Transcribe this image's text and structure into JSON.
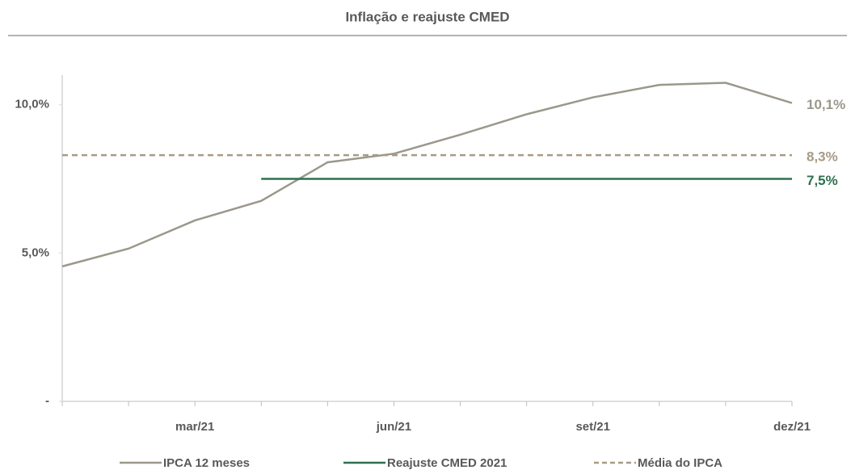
{
  "chart_data": {
    "type": "line",
    "title": "Inflação e reajuste CMED",
    "categories": [
      null,
      null,
      "mar/21",
      null,
      null,
      "jun/21",
      null,
      null,
      "set/21",
      null,
      null,
      "dez/21"
    ],
    "series": [
      {
        "name": "IPCA 12 meses",
        "color": "#9b988b",
        "dash": false,
        "values": [
          4.55,
          5.15,
          6.1,
          6.76,
          8.06,
          8.35,
          8.99,
          9.68,
          10.25,
          10.67,
          10.74,
          10.06
        ],
        "value_labels": [
          null,
          null,
          null,
          null,
          null,
          null,
          null,
          null,
          null,
          null,
          null,
          "10,1%"
        ]
      },
      {
        "name": "Reajuste CMED 2021",
        "color": "#2e7050",
        "dash": false,
        "values": [
          null,
          null,
          null,
          7.5,
          7.5,
          7.5,
          7.5,
          7.5,
          7.5,
          7.5,
          7.5,
          7.5
        ],
        "value_labels": [
          null,
          null,
          null,
          null,
          null,
          null,
          null,
          null,
          null,
          null,
          null,
          "7,5%"
        ]
      },
      {
        "name": "Média do IPCA",
        "color": "#a89a84",
        "dash": true,
        "values": [
          8.3,
          8.3,
          8.3,
          8.3,
          8.3,
          8.3,
          8.3,
          8.3,
          8.3,
          8.3,
          8.3,
          8.3
        ],
        "value_labels": [
          null,
          null,
          null,
          null,
          null,
          null,
          null,
          null,
          null,
          null,
          null,
          "8,3%"
        ]
      }
    ],
    "ylim": [
      0,
      11
    ],
    "yticks": [
      {
        "value": 0,
        "label": "-"
      },
      {
        "value": 5,
        "label": "5,0%"
      },
      {
        "value": 10,
        "label": "10,0%"
      }
    ],
    "grid": false,
    "legend": "bottom"
  }
}
